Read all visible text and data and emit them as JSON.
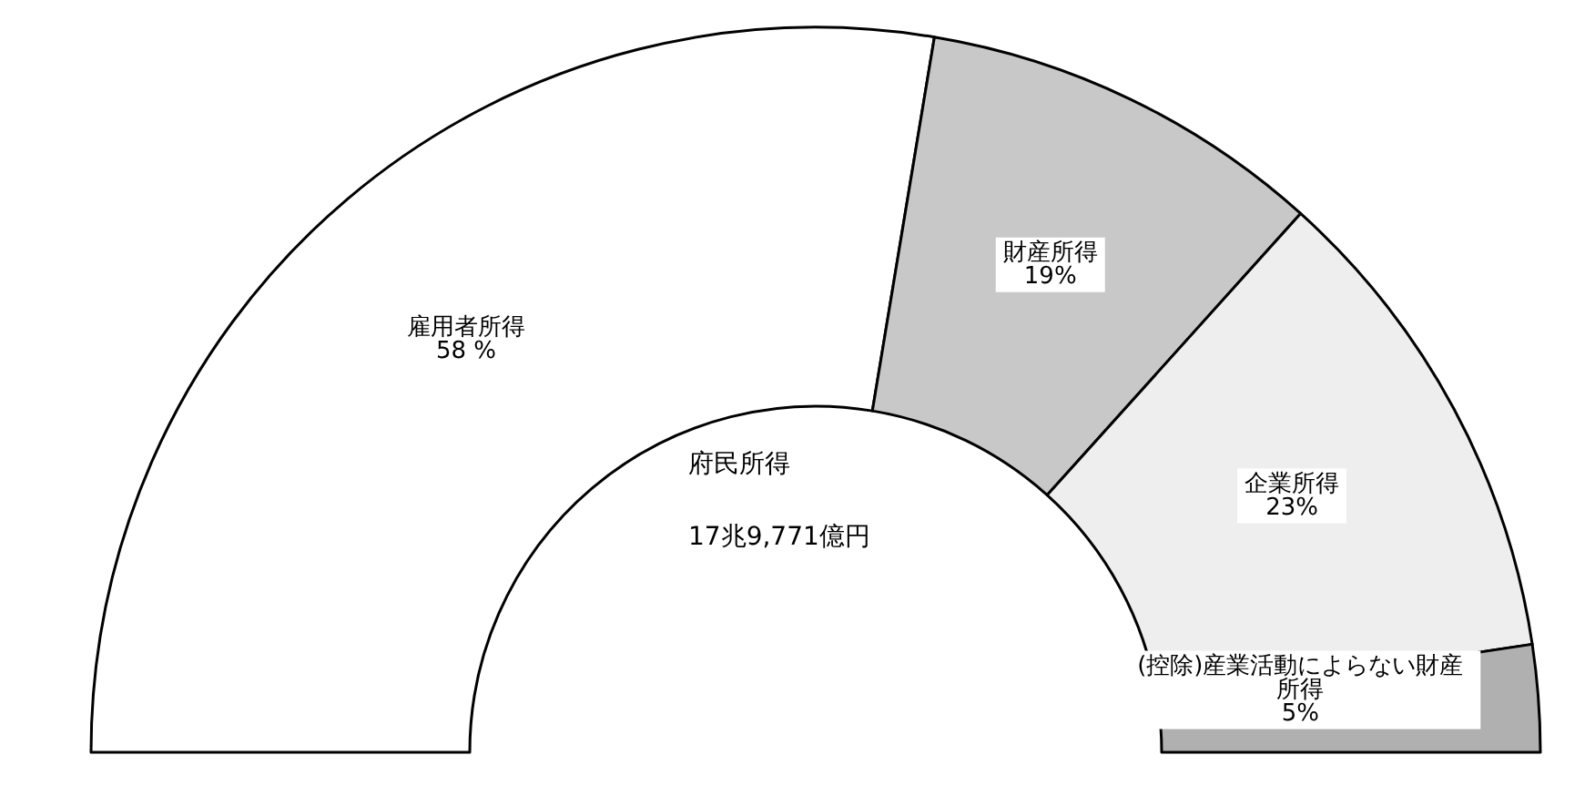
{
  "chart_data": {
    "type": "donut",
    "categories": [
      "雇用者所得",
      "財産所得",
      "企業所得",
      "(控除)産業活動によらない財産所得"
    ],
    "values": [
      58,
      19,
      23,
      5
    ],
    "value_labels": [
      "58 %",
      "19%",
      "23%",
      "5%"
    ],
    "colors": [
      "#ffffff",
      "#c8c8c8",
      "#eeeeee",
      "#b0b0b0"
    ],
    "annotations": [
      "府民所得",
      "17兆9,771億円"
    ],
    "legend": false
  }
}
